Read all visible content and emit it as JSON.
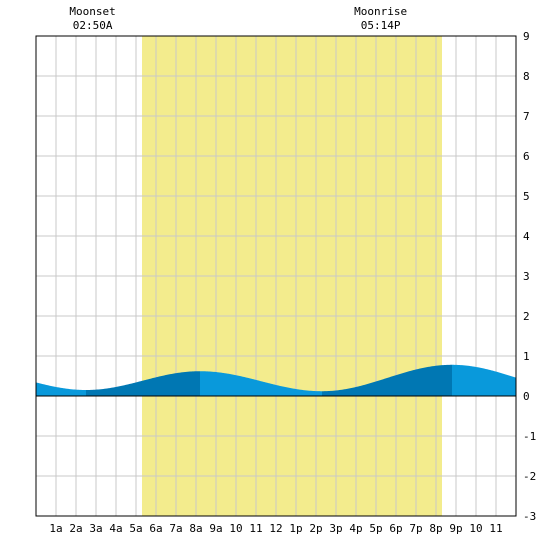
{
  "chart_data": {
    "type": "area",
    "title": "",
    "xlabel": "",
    "ylabel": "",
    "xlim": [
      0,
      24
    ],
    "ylim": [
      -3,
      9
    ],
    "y_ticks": [
      -3,
      -2,
      -1,
      0,
      1,
      2,
      3,
      4,
      5,
      6,
      7,
      8,
      9
    ],
    "x_ticks": [
      {
        "x": 1,
        "label": "1a"
      },
      {
        "x": 2,
        "label": "2a"
      },
      {
        "x": 3,
        "label": "3a"
      },
      {
        "x": 4,
        "label": "4a"
      },
      {
        "x": 5,
        "label": "5a"
      },
      {
        "x": 6,
        "label": "6a"
      },
      {
        "x": 7,
        "label": "7a"
      },
      {
        "x": 8,
        "label": "8a"
      },
      {
        "x": 9,
        "label": "9a"
      },
      {
        "x": 10,
        "label": "10"
      },
      {
        "x": 11,
        "label": "11"
      },
      {
        "x": 12,
        "label": "12"
      },
      {
        "x": 13,
        "label": "1p"
      },
      {
        "x": 14,
        "label": "2p"
      },
      {
        "x": 15,
        "label": "3p"
      },
      {
        "x": 16,
        "label": "4p"
      },
      {
        "x": 17,
        "label": "5p"
      },
      {
        "x": 18,
        "label": "6p"
      },
      {
        "x": 19,
        "label": "7p"
      },
      {
        "x": 20,
        "label": "8p"
      },
      {
        "x": 21,
        "label": "9p"
      },
      {
        "x": 22,
        "label": "10"
      },
      {
        "x": 23,
        "label": "11"
      }
    ],
    "daylight": {
      "start": 5.3,
      "end": 20.3
    },
    "tide_extremes": [
      {
        "x": 2.5,
        "y": 0.15,
        "kind": "low"
      },
      {
        "x": 8.2,
        "y": 0.62,
        "kind": "high"
      },
      {
        "x": 14.3,
        "y": 0.12,
        "kind": "low"
      },
      {
        "x": 20.8,
        "y": 0.78,
        "kind": "high"
      }
    ],
    "start_value": 0.36,
    "end_value": 0.48,
    "moon_events": [
      {
        "label": "Moonset",
        "time": "02:50A",
        "x": 2.83
      },
      {
        "label": "Moonrise",
        "time": "05:14P",
        "x": 17.23
      }
    ],
    "grid": true
  },
  "colors": {
    "daylight": "#f3ec8d",
    "water_light": "#0999db",
    "water_dark": "#0077b3",
    "grid": "#c8c8c8",
    "axis": "#000000"
  }
}
